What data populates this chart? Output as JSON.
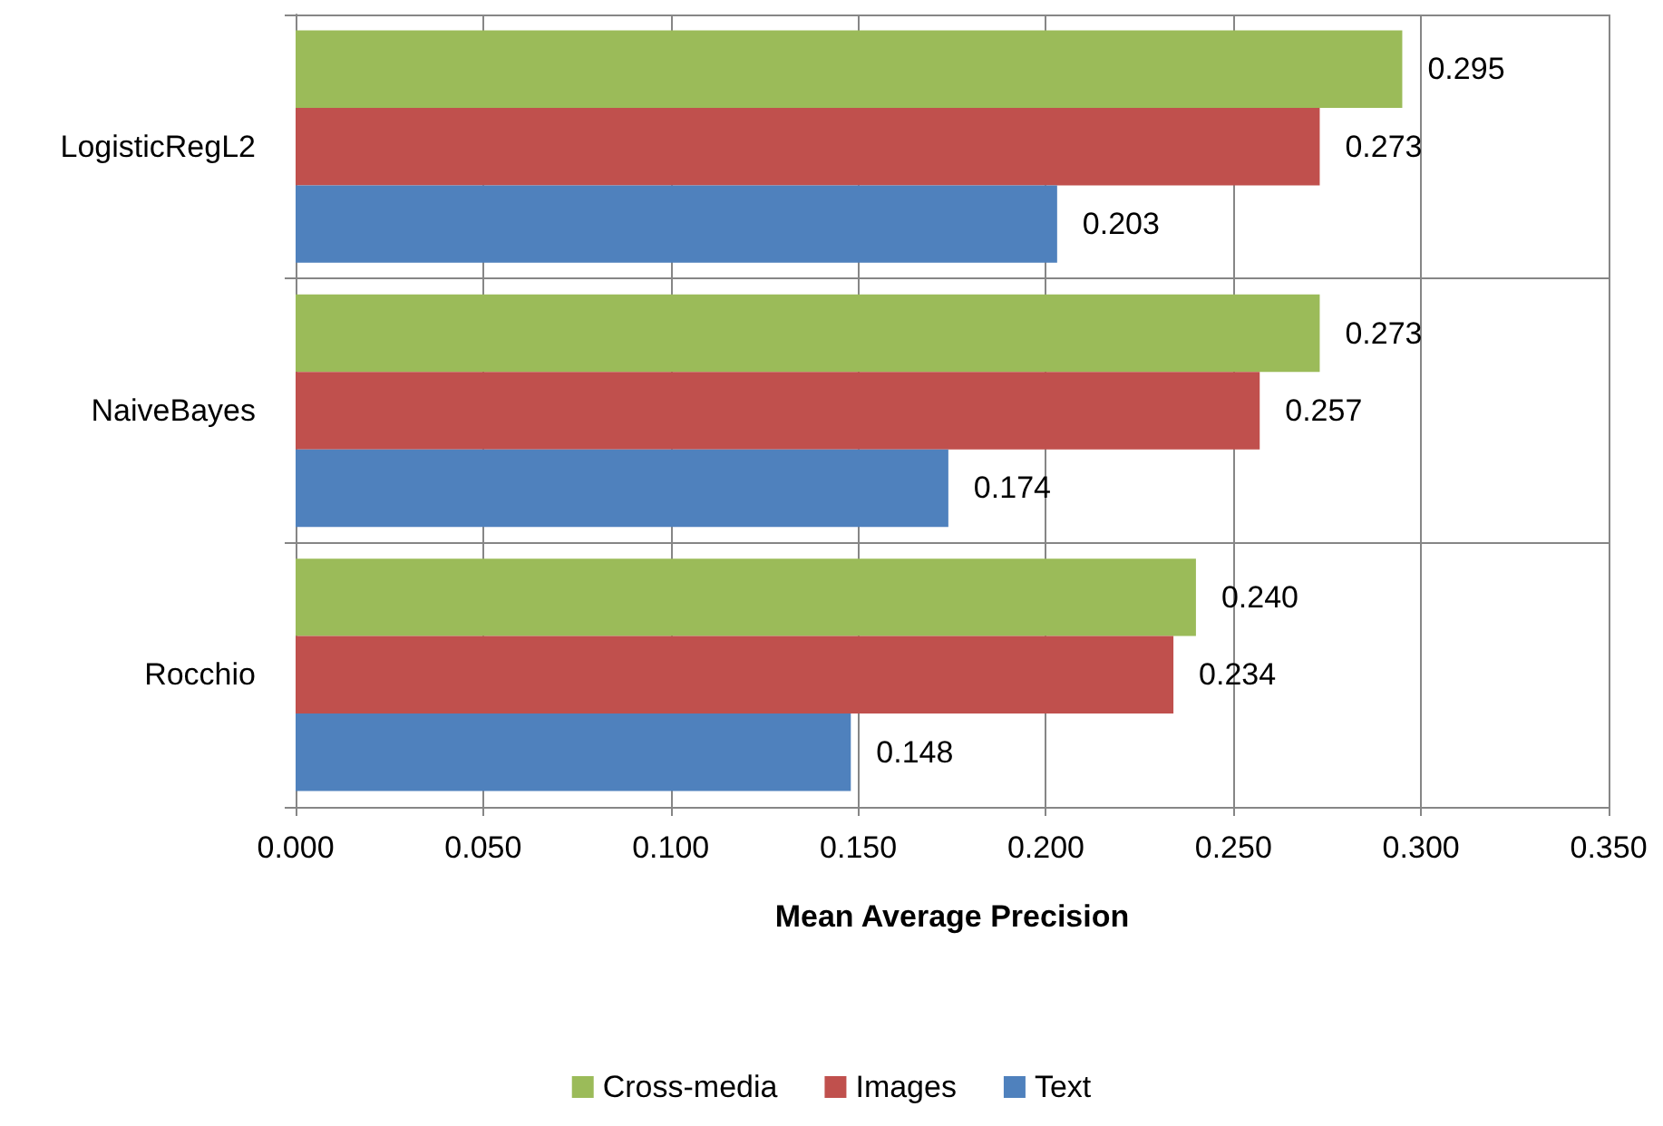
{
  "chart_data": {
    "type": "bar",
    "orientation": "horizontal",
    "xlabel": "Mean Average Precision",
    "categories": [
      "LogisticRegL2",
      "NaiveBayes",
      "Rocchio"
    ],
    "series": [
      {
        "name": "Cross-media",
        "color": "#9bbb59",
        "values": [
          0.295,
          0.273,
          0.24
        ],
        "value_labels": [
          "0.295",
          "0.273",
          "0.240"
        ]
      },
      {
        "name": "Images",
        "color": "#c0504d",
        "values": [
          0.273,
          0.257,
          0.234
        ],
        "value_labels": [
          "0.273",
          "0.257",
          "0.234"
        ]
      },
      {
        "name": "Text",
        "color": "#4f81bd",
        "values": [
          0.203,
          0.174,
          0.148
        ],
        "value_labels": [
          "0.203",
          "0.174",
          "0.148"
        ]
      }
    ],
    "xlim": [
      0,
      0.35
    ],
    "xticks": [
      {
        "value": 0,
        "label": "0.000"
      },
      {
        "value": 0.05,
        "label": "0.050"
      },
      {
        "value": 0.1,
        "label": "0.100"
      },
      {
        "value": 0.15,
        "label": "0.150"
      },
      {
        "value": 0.2,
        "label": "0.200"
      },
      {
        "value": 0.25,
        "label": "0.250"
      },
      {
        "value": 0.3,
        "label": "0.300"
      },
      {
        "value": 0.35,
        "label": "0.350"
      }
    ],
    "grid": true,
    "legend": "bottom"
  }
}
